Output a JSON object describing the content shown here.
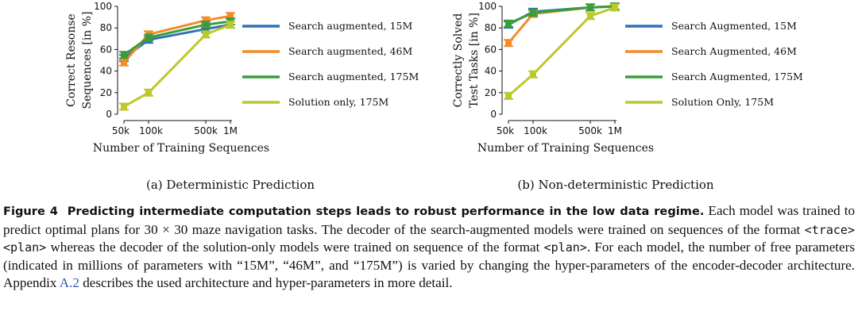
{
  "chart_data": [
    {
      "type": "line",
      "subcaption": "(a) Deterministic Prediction",
      "xlabel": "Number of Training Sequences",
      "ylabel": [
        "Correct Resonse",
        "Sequences [in %]"
      ],
      "x": [
        50000,
        100000,
        500000,
        1000000
      ],
      "x_tick_labels": [
        "50k",
        "100k",
        "500k",
        "1M"
      ],
      "x_scale": "log",
      "ylim": [
        0,
        100
      ],
      "y_ticks": [
        0,
        20,
        40,
        60,
        80,
        100
      ],
      "grid": false,
      "legend_position": "right",
      "series": [
        {
          "name": "Search augmented, 15M",
          "color": "#2f72b4",
          "values": [
            52,
            69,
            79,
            83
          ]
        },
        {
          "name": "Search augmented, 46M",
          "color": "#f28c28",
          "values": [
            48,
            74,
            87,
            91
          ]
        },
        {
          "name": "Search augmented, 175M",
          "color": "#3a9d3a",
          "values": [
            55,
            71,
            83,
            86
          ]
        },
        {
          "name": "Solution only, 175M",
          "color": "#bcc82c",
          "values": [
            7,
            20,
            74,
            83
          ]
        }
      ]
    },
    {
      "type": "line",
      "subcaption": "(b) Non-deterministic Prediction",
      "xlabel": "Number of Training Sequences",
      "ylabel": [
        "Correctly Solved",
        "Test Tasks [in %]"
      ],
      "x": [
        50000,
        100000,
        500000,
        1000000
      ],
      "x_tick_labels": [
        "50k",
        "100k",
        "500k",
        "1M"
      ],
      "x_scale": "log",
      "ylim": [
        0,
        100
      ],
      "y_ticks": [
        0,
        20,
        40,
        60,
        80,
        100
      ],
      "grid": false,
      "legend_position": "right",
      "series": [
        {
          "name": "Search Augmented, 15M",
          "color": "#2f72b4",
          "values": [
            83,
            95,
            99,
            100
          ]
        },
        {
          "name": "Search Augmented, 46M",
          "color": "#f28c28",
          "values": [
            66,
            93,
            99,
            100
          ]
        },
        {
          "name": "Search Augmented, 175M",
          "color": "#3a9d3a",
          "values": [
            84,
            94,
            99,
            100
          ]
        },
        {
          "name": "Solution Only, 175M",
          "color": "#bcc82c",
          "values": [
            17,
            37,
            91,
            99
          ]
        }
      ]
    }
  ],
  "caption": {
    "figure_label": "Figure 4",
    "bold_title": "Predicting intermediate computation steps leads to robust performance in the low data regime.",
    "text_1": "Each model was trained to predict optimal plans for 30 × 30 maze navigation tasks. The decoder of the search-augmented models were trained on sequences of the format",
    "code_1": "<trace><plan>",
    "text_2": "whereas the decoder of the solution-only models were trained on sequence of the format",
    "code_2": "<plan>",
    "text_3": ". For each model, the number of free parameters (indicated in millions of parameters with “15M”, “46M”, and “175M”) is varied by changing the hyper-parameters of the encoder-decoder architecture. Appendix",
    "ref": "A.2",
    "text_4": "describes the used architecture and hyper-parameters in more detail."
  }
}
